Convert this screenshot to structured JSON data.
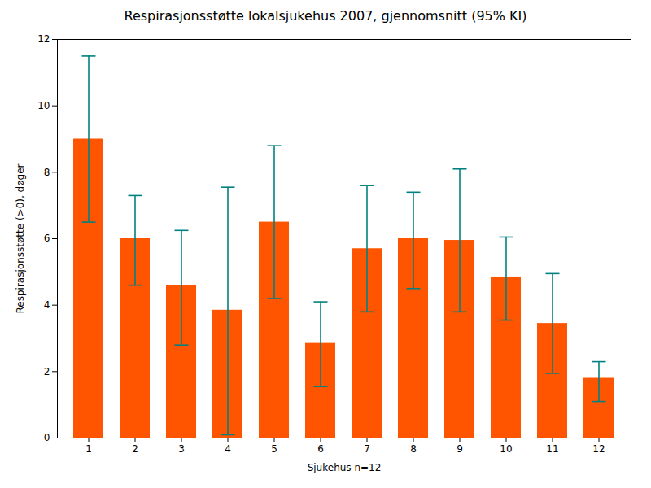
{
  "chart_data": {
    "type": "bar",
    "title": "Respirasjonsstøtte lokalsjukehus 2007, gjennomsnitt (95% KI)",
    "xlabel": "Sjukehus n=12",
    "ylabel": "Respirasjonsstøtte (>0), døger",
    "categories": [
      1,
      2,
      3,
      4,
      5,
      6,
      7,
      8,
      9,
      10,
      11,
      12
    ],
    "values": [
      9.0,
      6.0,
      4.6,
      3.85,
      6.5,
      2.85,
      5.7,
      6.0,
      5.95,
      4.85,
      3.45,
      1.8
    ],
    "error_bars": {
      "lower": [
        6.5,
        4.6,
        2.8,
        0.1,
        4.2,
        1.55,
        3.8,
        4.5,
        3.8,
        3.55,
        1.95,
        1.1
      ],
      "upper": [
        11.5,
        7.3,
        6.25,
        7.55,
        8.8,
        4.1,
        7.6,
        7.4,
        8.1,
        6.05,
        4.95,
        2.3
      ],
      "color": "#008080"
    },
    "color": "#FF5500",
    "ylim": [
      0,
      12
    ],
    "yticks": [
      0,
      2,
      4,
      6,
      8,
      10,
      12
    ],
    "grid": false
  }
}
